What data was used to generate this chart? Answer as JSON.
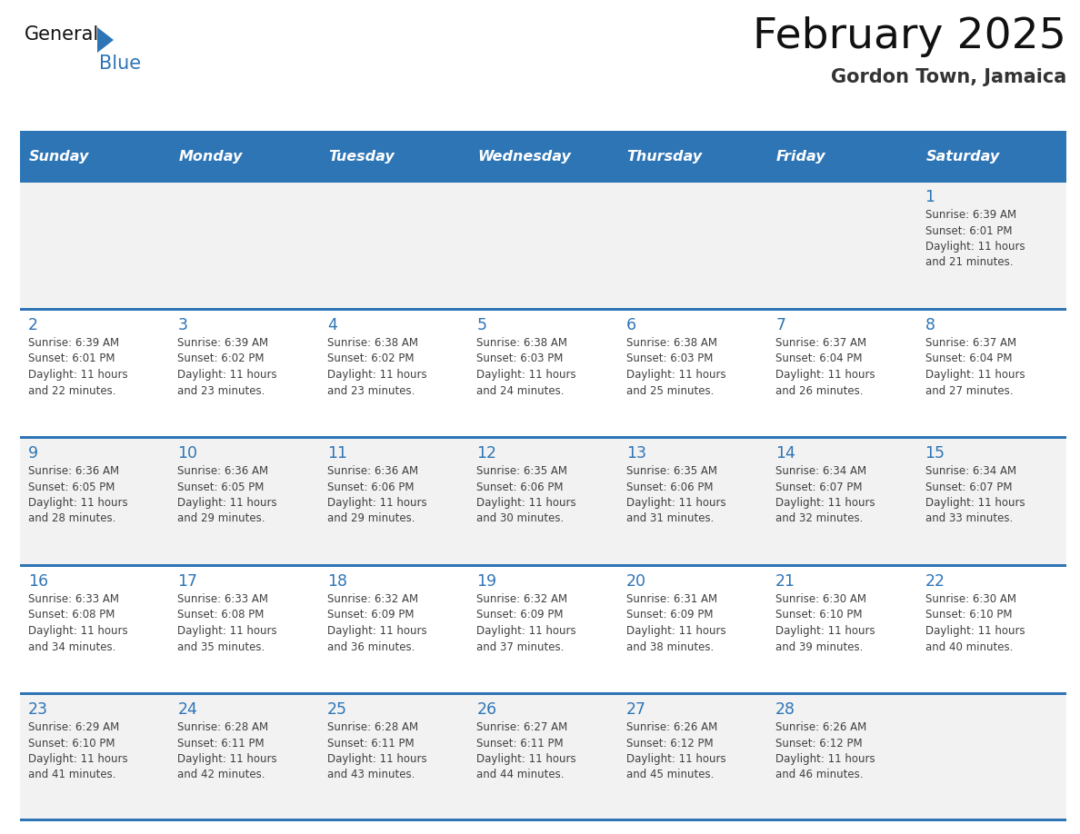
{
  "title": "February 2025",
  "subtitle": "Gordon Town, Jamaica",
  "header_color": "#2E75B6",
  "header_text_color": "#FFFFFF",
  "cell_bg_row0": "#F2F2F2",
  "cell_bg_row1": "#FFFFFF",
  "cell_bg_row2": "#F2F2F2",
  "cell_bg_row3": "#FFFFFF",
  "cell_bg_row4": "#F2F2F2",
  "day_number_color": "#2E75B6",
  "text_color": "#404040",
  "border_color": "#2E75B6",
  "days_of_week": [
    "Sunday",
    "Monday",
    "Tuesday",
    "Wednesday",
    "Thursday",
    "Friday",
    "Saturday"
  ],
  "calendar_data": [
    [
      null,
      null,
      null,
      null,
      null,
      null,
      {
        "day": "1",
        "sunrise": "6:39 AM",
        "sunset": "6:01 PM",
        "daylight_h": "11 hours",
        "daylight_m": "and 21 minutes."
      }
    ],
    [
      {
        "day": "2",
        "sunrise": "6:39 AM",
        "sunset": "6:01 PM",
        "daylight_h": "11 hours",
        "daylight_m": "and 22 minutes."
      },
      {
        "day": "3",
        "sunrise": "6:39 AM",
        "sunset": "6:02 PM",
        "daylight_h": "11 hours",
        "daylight_m": "and 23 minutes."
      },
      {
        "day": "4",
        "sunrise": "6:38 AM",
        "sunset": "6:02 PM",
        "daylight_h": "11 hours",
        "daylight_m": "and 23 minutes."
      },
      {
        "day": "5",
        "sunrise": "6:38 AM",
        "sunset": "6:03 PM",
        "daylight_h": "11 hours",
        "daylight_m": "and 24 minutes."
      },
      {
        "day": "6",
        "sunrise": "6:38 AM",
        "sunset": "6:03 PM",
        "daylight_h": "11 hours",
        "daylight_m": "and 25 minutes."
      },
      {
        "day": "7",
        "sunrise": "6:37 AM",
        "sunset": "6:04 PM",
        "daylight_h": "11 hours",
        "daylight_m": "and 26 minutes."
      },
      {
        "day": "8",
        "sunrise": "6:37 AM",
        "sunset": "6:04 PM",
        "daylight_h": "11 hours",
        "daylight_m": "and 27 minutes."
      }
    ],
    [
      {
        "day": "9",
        "sunrise": "6:36 AM",
        "sunset": "6:05 PM",
        "daylight_h": "11 hours",
        "daylight_m": "and 28 minutes."
      },
      {
        "day": "10",
        "sunrise": "6:36 AM",
        "sunset": "6:05 PM",
        "daylight_h": "11 hours",
        "daylight_m": "and 29 minutes."
      },
      {
        "day": "11",
        "sunrise": "6:36 AM",
        "sunset": "6:06 PM",
        "daylight_h": "11 hours",
        "daylight_m": "and 29 minutes."
      },
      {
        "day": "12",
        "sunrise": "6:35 AM",
        "sunset": "6:06 PM",
        "daylight_h": "11 hours",
        "daylight_m": "and 30 minutes."
      },
      {
        "day": "13",
        "sunrise": "6:35 AM",
        "sunset": "6:06 PM",
        "daylight_h": "11 hours",
        "daylight_m": "and 31 minutes."
      },
      {
        "day": "14",
        "sunrise": "6:34 AM",
        "sunset": "6:07 PM",
        "daylight_h": "11 hours",
        "daylight_m": "and 32 minutes."
      },
      {
        "day": "15",
        "sunrise": "6:34 AM",
        "sunset": "6:07 PM",
        "daylight_h": "11 hours",
        "daylight_m": "and 33 minutes."
      }
    ],
    [
      {
        "day": "16",
        "sunrise": "6:33 AM",
        "sunset": "6:08 PM",
        "daylight_h": "11 hours",
        "daylight_m": "and 34 minutes."
      },
      {
        "day": "17",
        "sunrise": "6:33 AM",
        "sunset": "6:08 PM",
        "daylight_h": "11 hours",
        "daylight_m": "and 35 minutes."
      },
      {
        "day": "18",
        "sunrise": "6:32 AM",
        "sunset": "6:09 PM",
        "daylight_h": "11 hours",
        "daylight_m": "and 36 minutes."
      },
      {
        "day": "19",
        "sunrise": "6:32 AM",
        "sunset": "6:09 PM",
        "daylight_h": "11 hours",
        "daylight_m": "and 37 minutes."
      },
      {
        "day": "20",
        "sunrise": "6:31 AM",
        "sunset": "6:09 PM",
        "daylight_h": "11 hours",
        "daylight_m": "and 38 minutes."
      },
      {
        "day": "21",
        "sunrise": "6:30 AM",
        "sunset": "6:10 PM",
        "daylight_h": "11 hours",
        "daylight_m": "and 39 minutes."
      },
      {
        "day": "22",
        "sunrise": "6:30 AM",
        "sunset": "6:10 PM",
        "daylight_h": "11 hours",
        "daylight_m": "and 40 minutes."
      }
    ],
    [
      {
        "day": "23",
        "sunrise": "6:29 AM",
        "sunset": "6:10 PM",
        "daylight_h": "11 hours",
        "daylight_m": "and 41 minutes."
      },
      {
        "day": "24",
        "sunrise": "6:28 AM",
        "sunset": "6:11 PM",
        "daylight_h": "11 hours",
        "daylight_m": "and 42 minutes."
      },
      {
        "day": "25",
        "sunrise": "6:28 AM",
        "sunset": "6:11 PM",
        "daylight_h": "11 hours",
        "daylight_m": "and 43 minutes."
      },
      {
        "day": "26",
        "sunrise": "6:27 AM",
        "sunset": "6:11 PM",
        "daylight_h": "11 hours",
        "daylight_m": "and 44 minutes."
      },
      {
        "day": "27",
        "sunrise": "6:26 AM",
        "sunset": "6:12 PM",
        "daylight_h": "11 hours",
        "daylight_m": "and 45 minutes."
      },
      {
        "day": "28",
        "sunrise": "6:26 AM",
        "sunset": "6:12 PM",
        "daylight_h": "11 hours",
        "daylight_m": "and 46 minutes."
      },
      null
    ]
  ],
  "logo_text_general": "General",
  "logo_text_blue": "Blue",
  "logo_triangle_color": "#2E75B6",
  "row_bg_colors": [
    "#F2F2F2",
    "#FFFFFF",
    "#F2F2F2",
    "#FFFFFF",
    "#F2F2F2"
  ]
}
